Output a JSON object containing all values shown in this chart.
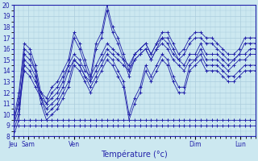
{
  "bg_color": "#cce8f0",
  "grid_color": "#aaccdd",
  "line_color": "#2222aa",
  "marker": "+",
  "xlabel": "Température (°c)",
  "ylim": [
    8,
    20
  ],
  "yticks": [
    8,
    9,
    10,
    11,
    12,
    13,
    14,
    15,
    16,
    17,
    18,
    19,
    20
  ],
  "xtick_positions": [
    0,
    12,
    48,
    144,
    180
  ],
  "xtick_labels": [
    "Jeu",
    "Sam",
    "Ven",
    "Dim",
    "Lun"
  ],
  "total_points": 45,
  "total_hours": 192,
  "series": [
    [
      9.5,
      12.0,
      16.5,
      16.0,
      14.5,
      12.0,
      11.0,
      11.5,
      12.0,
      13.0,
      14.5,
      15.5,
      15.0,
      14.0,
      13.5,
      16.5,
      17.5,
      20.0,
      18.0,
      17.0,
      15.5,
      14.0,
      15.5,
      16.0,
      16.5,
      15.5,
      16.5,
      17.5,
      17.5,
      16.5,
      15.5,
      16.0,
      17.0,
      17.5,
      17.5,
      17.0,
      17.0,
      16.5,
      16.0,
      15.5,
      15.5,
      16.0,
      17.0,
      17.0,
      17.0
    ],
    [
      9.0,
      11.5,
      16.0,
      15.5,
      14.0,
      11.5,
      10.5,
      11.0,
      11.5,
      12.5,
      14.0,
      15.0,
      14.5,
      13.5,
      13.0,
      16.0,
      17.0,
      19.5,
      17.5,
      16.5,
      15.0,
      13.5,
      15.0,
      15.5,
      16.0,
      15.0,
      16.0,
      17.0,
      17.0,
      16.0,
      15.0,
      15.5,
      16.5,
      17.0,
      17.0,
      16.5,
      16.5,
      16.0,
      15.5,
      15.0,
      15.0,
      15.5,
      16.5,
      16.5,
      16.5
    ],
    [
      9.5,
      11.0,
      14.5,
      14.0,
      13.0,
      12.0,
      11.5,
      12.5,
      13.0,
      14.0,
      15.0,
      17.5,
      16.5,
      15.0,
      13.5,
      14.5,
      15.5,
      16.5,
      16.0,
      15.5,
      15.0,
      14.5,
      15.5,
      16.0,
      16.5,
      15.5,
      16.5,
      17.0,
      16.5,
      15.5,
      15.0,
      14.5,
      15.5,
      15.5,
      16.5,
      15.5,
      15.5,
      15.5,
      15.0,
      14.5,
      15.0,
      15.5,
      15.5,
      16.0,
      16.0
    ],
    [
      9.0,
      10.5,
      14.0,
      13.5,
      12.5,
      11.5,
      11.0,
      12.0,
      12.5,
      13.5,
      14.5,
      17.0,
      16.0,
      14.5,
      13.0,
      14.0,
      15.0,
      16.0,
      15.5,
      15.0,
      14.5,
      14.0,
      15.0,
      15.5,
      16.0,
      15.0,
      16.0,
      16.5,
      16.0,
      15.0,
      14.5,
      14.0,
      15.0,
      15.0,
      16.0,
      15.0,
      15.0,
      15.0,
      14.5,
      14.0,
      14.5,
      15.0,
      15.0,
      15.5,
      15.5
    ],
    [
      8.5,
      10.0,
      15.5,
      15.0,
      14.0,
      11.5,
      10.0,
      10.5,
      11.0,
      12.0,
      13.0,
      15.0,
      14.5,
      13.5,
      12.5,
      13.5,
      14.5,
      15.5,
      15.0,
      14.0,
      13.0,
      10.0,
      11.5,
      12.5,
      14.5,
      13.5,
      14.5,
      15.5,
      15.0,
      13.5,
      12.5,
      12.5,
      14.5,
      15.0,
      15.5,
      14.5,
      14.5,
      14.5,
      14.0,
      13.5,
      13.5,
      14.0,
      14.5,
      14.5,
      14.5
    ],
    [
      8.0,
      9.5,
      15.0,
      14.5,
      13.5,
      11.0,
      9.5,
      10.0,
      10.5,
      11.5,
      12.5,
      14.5,
      14.0,
      13.0,
      12.0,
      13.0,
      14.0,
      15.0,
      14.5,
      13.5,
      12.5,
      9.5,
      11.0,
      12.0,
      14.0,
      13.0,
      14.0,
      15.0,
      14.5,
      13.0,
      12.0,
      12.0,
      14.0,
      14.5,
      15.0,
      14.0,
      14.0,
      14.0,
      13.5,
      13.0,
      13.0,
      13.5,
      14.0,
      14.0,
      14.0
    ],
    [
      9.5,
      9.5,
      9.5,
      9.5,
      9.5,
      9.5,
      9.5,
      9.5,
      9.5,
      9.5,
      9.5,
      9.5,
      9.5,
      9.5,
      9.5,
      9.5,
      9.5,
      9.5,
      9.5,
      9.5,
      9.5,
      9.5,
      9.5,
      9.5,
      9.5,
      9.5,
      9.5,
      9.5,
      9.5,
      9.5,
      9.5,
      9.5,
      9.5,
      9.5,
      9.5,
      9.5,
      9.5,
      9.5,
      9.5,
      9.5,
      9.5,
      9.5,
      9.5,
      9.5,
      9.5
    ],
    [
      9.0,
      9.0,
      9.0,
      9.0,
      9.0,
      9.0,
      9.0,
      9.0,
      9.0,
      9.0,
      9.0,
      9.0,
      9.0,
      9.0,
      9.0,
      9.0,
      9.0,
      9.0,
      9.0,
      9.0,
      9.0,
      9.0,
      9.0,
      9.0,
      9.0,
      9.0,
      9.0,
      9.0,
      9.0,
      9.0,
      9.0,
      9.0,
      9.0,
      9.0,
      9.0,
      9.0,
      9.0,
      9.0,
      9.0,
      9.0,
      9.0,
      9.0,
      9.0,
      9.0,
      9.0
    ]
  ]
}
